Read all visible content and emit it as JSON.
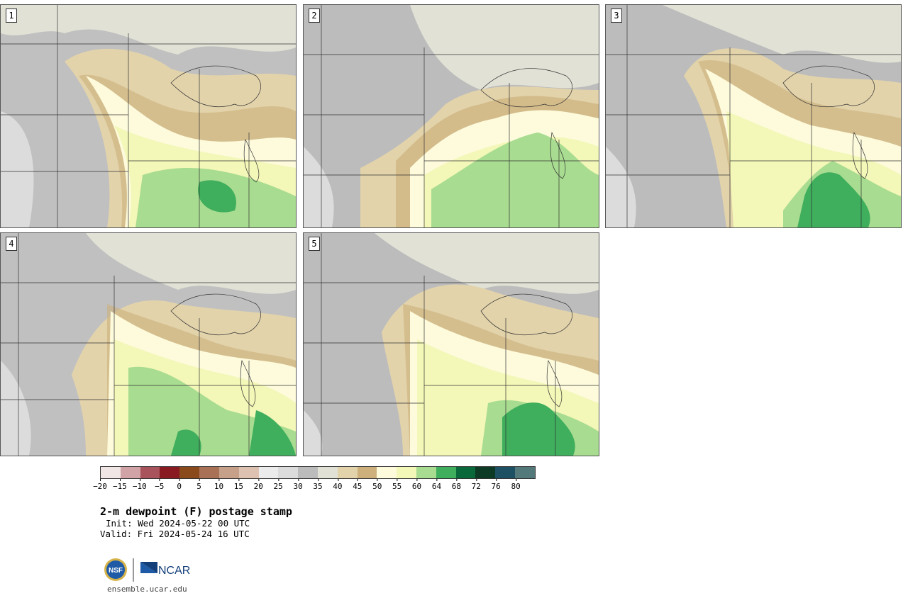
{
  "panels": [
    {
      "label": "1"
    },
    {
      "label": "2"
    },
    {
      "label": "3"
    },
    {
      "label": "4"
    },
    {
      "label": "5"
    }
  ],
  "colorbar": {
    "colors": [
      "#f1e6e6",
      "#d1a3a6",
      "#a9545c",
      "#8a1a22",
      "#8a4a1c",
      "#a97155",
      "#c7a08a",
      "#dec2b1",
      "#ececec",
      "#dcdcdc",
      "#bcbcbc",
      "#e1e1d6",
      "#e2d3ab",
      "#cdb07c",
      "#fdfbdc",
      "#f3f7b7",
      "#a8dc90",
      "#3fae5d",
      "#09693a",
      "#0c3a25",
      "#1e5064",
      "#54797a"
    ],
    "ticks": [
      "-20",
      "-15",
      "-10",
      "-5",
      "0",
      "5",
      "10",
      "15",
      "20",
      "25",
      "30",
      "35",
      "40",
      "45",
      "50",
      "55",
      "60",
      "64",
      "68",
      "72",
      "76",
      "80"
    ]
  },
  "text": {
    "title": "2-m dewpoint (F) postage stamp",
    "init": "Init: Wed 2024-05-22 00 UTC",
    "valid": "Valid: Fri 2024-05-24 16 UTC",
    "site": "ensemble.ucar.edu",
    "nsf_logo": "NSF",
    "ncar_logo": "NCAR"
  }
}
